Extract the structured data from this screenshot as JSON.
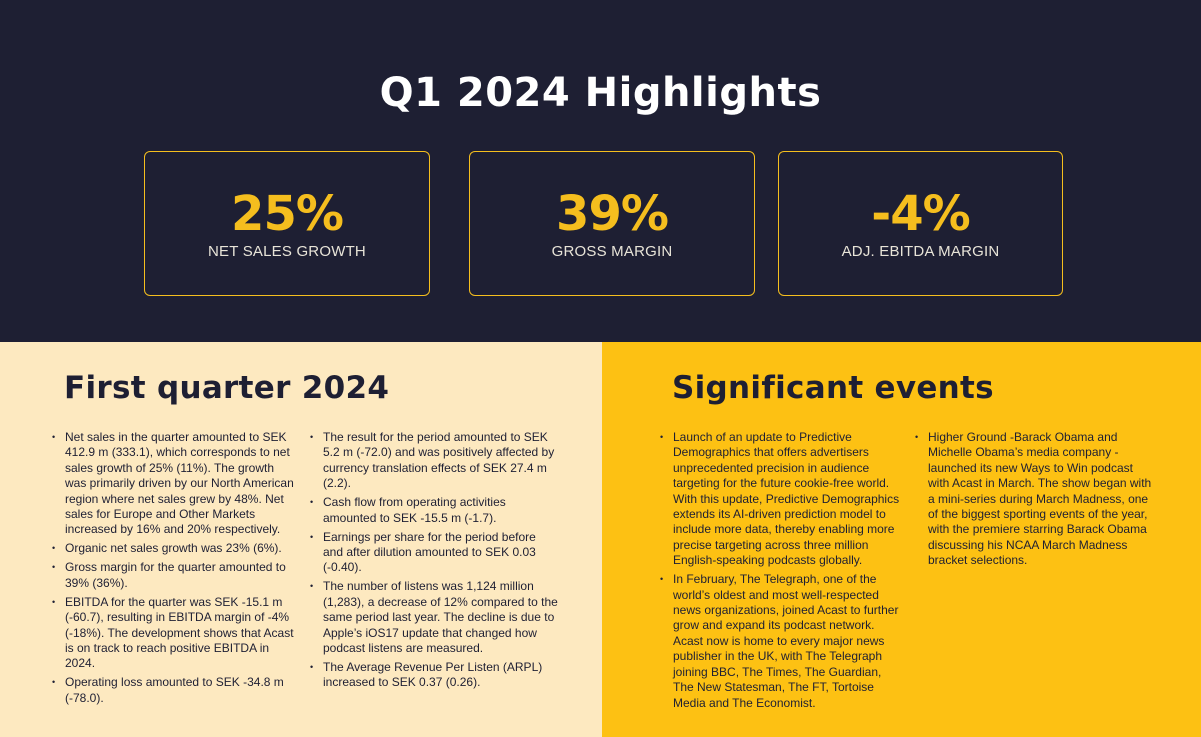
{
  "hero": {
    "title": "Q1 2024 Highlights",
    "kpis": [
      {
        "value": "25%",
        "label": "NET SALES GROWTH"
      },
      {
        "value": "39%",
        "label": "GROSS MARGIN"
      },
      {
        "value": "-4%",
        "label": "ADJ. EBITDA MARGIN"
      }
    ]
  },
  "first_quarter": {
    "title": "First quarter 2024",
    "col1": [
      "Net sales in the quarter amounted to SEK 412.9 m (333.1), which corresponds to net sales growth of 25% (11%). The growth was primarily driven by our North American region where net sales grew by 48%. Net sales for Europe and Other Markets increased by 16% and 20% respectively.",
      "Organic net sales growth was 23% (6%).",
      "Gross margin for the quarter amounted to 39% (36%).",
      "EBITDA for the quarter was SEK -15.1 m (-60.7), resulting in EBITDA margin of -4% (-18%). The development shows that Acast is on track to reach positive EBITDA in 2024.",
      "Operating loss amounted to SEK -34.8 m (-78.0)."
    ],
    "col2": [
      "The result for the period amounted to SEK 5.2 m (-72.0) and was positively affected by currency translation effects of SEK 27.4 m (2.2).",
      "Cash flow from operating activities amounted to SEK -15.5 m (-1.7).",
      "Earnings per share for the period before and after dilution amounted to SEK 0.03 (-0.40).",
      "The number of listens was 1,124 million (1,283), a decrease of 12% compared to the same period last year. The decline is due to Apple’s iOS17 update that changed how podcast listens are measured.",
      "The Average Revenue Per Listen (ARPL) increased to SEK 0.37 (0.26)."
    ]
  },
  "significant_events": {
    "title": "Significant events",
    "col1": [
      "Launch of an update to Predictive Demographics that offers advertisers unprecedented precision in audience targeting for the future cookie-free world. With this update, Predictive Demographics extends its AI-driven prediction model to include more data, thereby enabling more precise targeting across three million English-speaking podcasts globally.",
      "In February, The Telegraph, one of the world’s oldest and most well-respected news organizations, joined Acast to further grow and expand its podcast network. Acast now is home to every major news publisher in the UK, with The Telegraph joining BBC, The Times, The Guardian, The New Statesman, The FT, Tortoise Media and The Economist."
    ],
    "col2": [
      "Higher Ground -Barack Obama and Michelle Obama’s media company -launched its new Ways to Win podcast with Acast in March. The show began with a mini-series during March Madness, one of the biggest sporting events of the year, with the premiere starring Barack Obama discussing his NCAA March Madness bracket selections."
    ]
  }
}
